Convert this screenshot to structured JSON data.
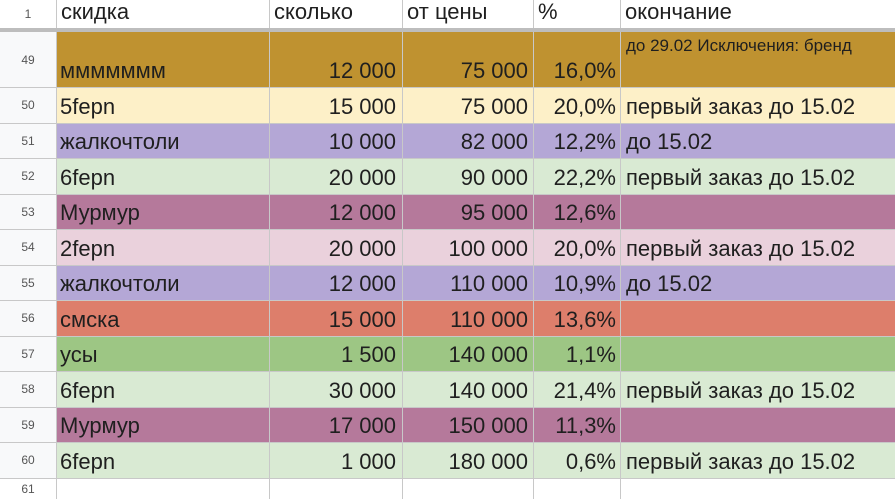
{
  "header": {
    "row_number": "1",
    "name": "скидка",
    "qty": "сколько",
    "price": "от цены",
    "pct": "%",
    "end": "окончание"
  },
  "rows": [
    {
      "num": "49",
      "name": "ммммммм",
      "qty": "12 000",
      "price": "75 000",
      "pct": "16,0%",
      "end": "до 29.02 Исключения: бренд",
      "color": "#bf9230"
    },
    {
      "num": "50",
      "name": "5fepn",
      "qty": "15 000",
      "price": "75 000",
      "pct": "20,0%",
      "end": "первый заказ до 15.02",
      "color": "#fdf0c8"
    },
    {
      "num": "51",
      "name": "жалкочтоли",
      "qty": "10 000",
      "price": "82 000",
      "pct": "12,2%",
      "end": "до 15.02",
      "color": "#b4a7d6"
    },
    {
      "num": "52",
      "name": "6fepn",
      "qty": "20 000",
      "price": "90 000",
      "pct": "22,2%",
      "end": "первый заказ до 15.02",
      "color": "#d9ead3"
    },
    {
      "num": "53",
      "name": "Мурмур",
      "qty": "12 000",
      "price": "95 000",
      "pct": "12,6%",
      "end": "",
      "color": "#b5799b"
    },
    {
      "num": "54",
      "name": "2fepn",
      "qty": "20 000",
      "price": "100 000",
      "pct": "20,0%",
      "end": "первый заказ до 15.02",
      "color": "#ead1dc"
    },
    {
      "num": "55",
      "name": "жалкочтоли",
      "qty": "12 000",
      "price": "110 000",
      "pct": "10,9%",
      "end": "до 15.02",
      "color": "#b4a7d6"
    },
    {
      "num": "56",
      "name": "смска",
      "qty": "15 000",
      "price": "110 000",
      "pct": "13,6%",
      "end": "",
      "color": "#dd7e6b"
    },
    {
      "num": "57",
      "name": "усы",
      "qty": "1 500",
      "price": "140 000",
      "pct": "1,1%",
      "end": "",
      "color": "#9dc684"
    },
    {
      "num": "58",
      "name": "6fepn",
      "qty": "30 000",
      "price": "140 000",
      "pct": "21,4%",
      "end": "первый заказ до 15.02",
      "color": "#d9ead3"
    },
    {
      "num": "59",
      "name": "Мурмур",
      "qty": "17 000",
      "price": "150 000",
      "pct": "11,3%",
      "end": "",
      "color": "#b5799b"
    },
    {
      "num": "60",
      "name": "6fepn",
      "qty": "1 000",
      "price": "180 000",
      "pct": "0,6%",
      "end": "первый заказ до 15.02",
      "color": "#d9ead3"
    }
  ],
  "tail_row_number": "61"
}
